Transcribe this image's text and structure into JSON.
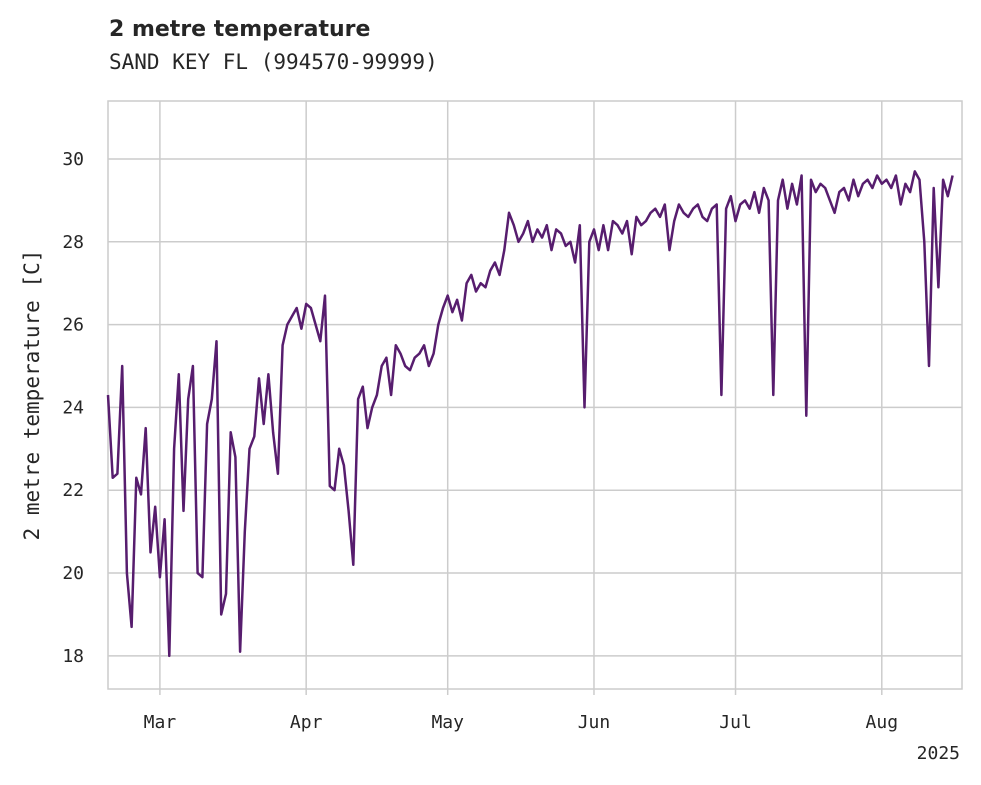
{
  "chart_data": {
    "type": "line",
    "title": "2 metre temperature",
    "subtitle": "SAND KEY  FL (994570-99999)",
    "ylabel": "2 metre temperature [C]",
    "xlabel": "",
    "year_label": "2025",
    "ylim": [
      17.2,
      31.4
    ],
    "xlim": [
      "2025-02-18",
      "2025-08-18"
    ],
    "yticks": [
      18,
      20,
      22,
      24,
      26,
      28,
      30
    ],
    "xticks": [
      {
        "date": "2025-03-01",
        "label": "Mar"
      },
      {
        "date": "2025-04-01",
        "label": "Apr"
      },
      {
        "date": "2025-05-01",
        "label": "May"
      },
      {
        "date": "2025-06-01",
        "label": "Jun"
      },
      {
        "date": "2025-07-01",
        "label": "Jul"
      },
      {
        "date": "2025-08-01",
        "label": "Aug"
      }
    ],
    "grid": true,
    "line_color": "#571d6e",
    "series": [
      {
        "x": [
          "2025-02-18",
          "2025-02-19",
          "2025-02-20",
          "2025-02-21",
          "2025-02-22",
          "2025-02-23",
          "2025-02-24",
          "2025-02-25",
          "2025-02-26",
          "2025-02-27",
          "2025-02-28",
          "2025-03-01",
          "2025-03-02",
          "2025-03-03",
          "2025-03-04",
          "2025-03-05",
          "2025-03-06",
          "2025-03-07",
          "2025-03-08",
          "2025-03-09",
          "2025-03-10",
          "2025-03-11",
          "2025-03-12",
          "2025-03-13",
          "2025-03-14",
          "2025-03-15",
          "2025-03-16",
          "2025-03-17",
          "2025-03-18",
          "2025-03-19",
          "2025-03-20",
          "2025-03-21",
          "2025-03-22",
          "2025-03-23",
          "2025-03-24",
          "2025-03-25",
          "2025-03-26",
          "2025-03-27",
          "2025-03-28",
          "2025-03-29",
          "2025-03-30",
          "2025-03-31",
          "2025-04-01",
          "2025-04-02",
          "2025-04-03",
          "2025-04-04",
          "2025-04-05",
          "2025-04-06",
          "2025-04-07",
          "2025-04-08",
          "2025-04-09",
          "2025-04-10",
          "2025-04-11",
          "2025-04-12",
          "2025-04-13",
          "2025-04-14",
          "2025-04-15",
          "2025-04-16",
          "2025-04-17",
          "2025-04-18",
          "2025-04-19",
          "2025-04-20",
          "2025-04-21",
          "2025-04-22",
          "2025-04-23",
          "2025-04-24",
          "2025-04-25",
          "2025-04-26",
          "2025-04-27",
          "2025-04-28",
          "2025-04-29",
          "2025-04-30",
          "2025-05-01",
          "2025-05-02",
          "2025-05-03",
          "2025-05-04",
          "2025-05-05",
          "2025-05-06",
          "2025-05-07",
          "2025-05-08",
          "2025-05-09",
          "2025-05-10",
          "2025-05-11",
          "2025-05-12",
          "2025-05-13",
          "2025-05-14",
          "2025-05-15",
          "2025-05-16",
          "2025-05-17",
          "2025-05-18",
          "2025-05-19",
          "2025-05-20",
          "2025-05-21",
          "2025-05-22",
          "2025-05-23",
          "2025-05-24",
          "2025-05-25",
          "2025-05-26",
          "2025-05-27",
          "2025-05-28",
          "2025-05-29",
          "2025-05-30",
          "2025-05-31",
          "2025-06-01",
          "2025-06-02",
          "2025-06-03",
          "2025-06-04",
          "2025-06-05",
          "2025-06-06",
          "2025-06-07",
          "2025-06-08",
          "2025-06-09",
          "2025-06-10",
          "2025-06-11",
          "2025-06-12",
          "2025-06-13",
          "2025-06-14",
          "2025-06-15",
          "2025-06-16",
          "2025-06-17",
          "2025-06-18",
          "2025-06-19",
          "2025-06-20",
          "2025-06-21",
          "2025-06-22",
          "2025-06-23",
          "2025-06-24",
          "2025-06-25",
          "2025-06-26",
          "2025-06-27",
          "2025-06-28",
          "2025-06-29",
          "2025-06-30",
          "2025-07-01",
          "2025-07-02",
          "2025-07-03",
          "2025-07-04",
          "2025-07-05",
          "2025-07-06",
          "2025-07-07",
          "2025-07-08",
          "2025-07-09",
          "2025-07-10",
          "2025-07-11",
          "2025-07-12",
          "2025-07-13",
          "2025-07-14",
          "2025-07-15",
          "2025-07-16",
          "2025-07-17",
          "2025-07-18",
          "2025-07-19",
          "2025-07-20",
          "2025-07-21",
          "2025-07-22",
          "2025-07-23",
          "2025-07-24",
          "2025-07-25",
          "2025-07-26",
          "2025-07-27",
          "2025-07-28",
          "2025-07-29",
          "2025-07-30",
          "2025-07-31",
          "2025-08-01",
          "2025-08-02",
          "2025-08-03",
          "2025-08-04",
          "2025-08-05",
          "2025-08-06",
          "2025-08-07",
          "2025-08-08",
          "2025-08-09",
          "2025-08-10",
          "2025-08-11",
          "2025-08-12",
          "2025-08-13",
          "2025-08-14",
          "2025-08-15",
          "2025-08-16"
        ],
        "y": [
          24.3,
          22.3,
          22.4,
          25.0,
          20.0,
          18.7,
          22.3,
          21.9,
          23.5,
          20.5,
          21.6,
          19.9,
          21.3,
          18.0,
          23.0,
          24.8,
          21.5,
          24.2,
          25.0,
          20.0,
          19.9,
          23.6,
          24.2,
          25.6,
          19.0,
          19.5,
          23.4,
          22.8,
          18.1,
          21.0,
          23.0,
          23.3,
          24.7,
          23.6,
          24.8,
          23.4,
          22.4,
          25.5,
          26.0,
          26.2,
          26.4,
          25.9,
          26.5,
          26.4,
          26.0,
          25.6,
          26.7,
          22.1,
          22.0,
          23.0,
          22.6,
          21.5,
          20.2,
          24.2,
          24.5,
          23.5,
          24.0,
          24.3,
          25.0,
          25.2,
          24.3,
          25.5,
          25.3,
          25.0,
          24.9,
          25.2,
          25.3,
          25.5,
          25.0,
          25.3,
          26.0,
          26.4,
          26.7,
          26.3,
          26.6,
          26.1,
          27.0,
          27.2,
          26.8,
          27.0,
          26.9,
          27.3,
          27.5,
          27.2,
          27.8,
          28.7,
          28.4,
          28.0,
          28.2,
          28.5,
          28.0,
          28.3,
          28.1,
          28.4,
          27.8,
          28.3,
          28.2,
          27.9,
          28.0,
          27.5,
          28.4,
          24.0,
          28.0,
          28.3,
          27.8,
          28.4,
          27.8,
          28.5,
          28.4,
          28.2,
          28.5,
          27.7,
          28.6,
          28.4,
          28.5,
          28.7,
          28.8,
          28.6,
          28.9,
          27.8,
          28.5,
          28.9,
          28.7,
          28.6,
          28.8,
          28.9,
          28.6,
          28.5,
          28.8,
          28.9,
          24.3,
          28.8,
          29.1,
          28.5,
          28.9,
          29.0,
          28.8,
          29.2,
          28.7,
          29.3,
          29.0,
          24.3,
          29.0,
          29.5,
          28.8,
          29.4,
          28.9,
          29.6,
          23.8,
          29.5,
          29.2,
          29.4,
          29.3,
          29.0,
          28.7,
          29.2,
          29.3,
          29.0,
          29.5,
          29.1,
          29.4,
          29.5,
          29.3,
          29.6,
          29.4,
          29.5,
          29.3,
          29.6,
          28.9,
          29.4,
          29.2,
          29.7,
          29.5,
          28.0,
          25.0,
          29.3,
          26.9,
          29.5,
          29.1,
          29.6
        ]
      }
    ]
  }
}
